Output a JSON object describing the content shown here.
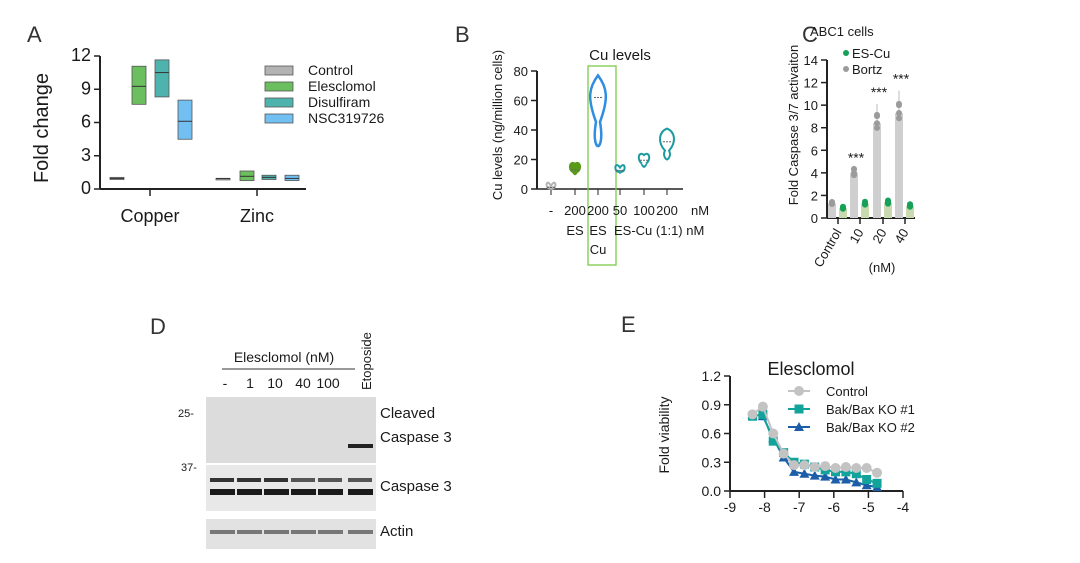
{
  "panels": {
    "a": "A",
    "b": "B",
    "c": "C",
    "d": "D",
    "e": "E"
  },
  "colors": {
    "control": "#b3b3b3",
    "elesclomol": "#6bbf5e",
    "disulfiram": "#4fb3ad",
    "nsc": "#72bff2",
    "es_green": "#5a9a1a",
    "escu_blue": "#2f8ee0",
    "teal": "#1b9aa0",
    "green_dot": "#16a05a",
    "grey_dot": "#9b9b9b",
    "ko1": "#12a39b",
    "ko2": "#1c5fa8",
    "highlight": "#7cc94a"
  },
  "chart_data": [
    {
      "id": "A",
      "type": "bar",
      "title": "",
      "xlabel": "",
      "ylabel": "Fold change",
      "ylim": [
        0,
        12.5
      ],
      "yticks": [
        0,
        3,
        6,
        9,
        12
      ],
      "categories": [
        "Copper",
        "Zinc"
      ],
      "series": [
        {
          "name": "Control",
          "min": [
            0.9,
            1.0
          ],
          "median": [
            1.0,
            1.0
          ],
          "max": [
            1.1,
            1.0
          ]
        },
        {
          "name": "Elesclomol",
          "min": [
            8.0,
            0.8
          ],
          "median": [
            9.7,
            1.2
          ],
          "max": [
            11.6,
            1.7
          ]
        },
        {
          "name": "Disulfiram",
          "min": [
            8.7,
            0.9
          ],
          "median": [
            11.0,
            1.1
          ],
          "max": [
            12.2,
            1.3
          ]
        },
        {
          "name": "NSC319726",
          "min": [
            4.7,
            0.8
          ],
          "median": [
            6.4,
            1.0
          ],
          "max": [
            8.4,
            1.3
          ]
        }
      ],
      "legend": "top-right"
    },
    {
      "id": "B",
      "type": "violin",
      "title": "Cu levels",
      "ylabel": "Cu levels (ng/million cells)",
      "ylim": [
        0,
        80
      ],
      "yticks": [
        0,
        20,
        40,
        60,
        80
      ],
      "dose_labels": [
        "-",
        "200",
        "200",
        "50",
        "100",
        "200",
        "nM"
      ],
      "group_labels": [
        "ES",
        "ES",
        "ES-Cu (1:1) nM"
      ],
      "group_label_extra": "Cu",
      "violins": [
        {
          "median": 1,
          "min": 0,
          "max": 2
        },
        {
          "median": 13,
          "min": 10,
          "max": 17
        },
        {
          "median": 62,
          "min": 29,
          "max": 77
        },
        {
          "median": 12.5,
          "min": 11,
          "max": 14.5
        },
        {
          "median": 19.5,
          "min": 15,
          "max": 23
        },
        {
          "median": 32,
          "min": 20,
          "max": 41
        }
      ]
    },
    {
      "id": "C",
      "type": "bar",
      "title": "ABC1 cells",
      "ylabel": "Fold Caspase 3/7 activaiton",
      "ylim": [
        0,
        14
      ],
      "yticks": [
        0,
        2,
        4,
        6,
        8,
        10,
        12,
        14
      ],
      "categories": [
        "Control",
        "10",
        "20",
        "40"
      ],
      "xunit": "(nM)",
      "series": [
        {
          "name": "ES-Cu",
          "values": [
            0.9,
            1.3,
            1.4,
            1.1
          ]
        },
        {
          "name": "Bortz",
          "values": [
            1.3,
            4.0,
            8.4,
            9.3
          ],
          "error_top": [
            1.7,
            4.3,
            10.1,
            11.3
          ]
        }
      ],
      "significance": [
        "",
        "***",
        "***",
        "***"
      ]
    },
    {
      "id": "E",
      "type": "line",
      "title": "Elesclomol",
      "xlabel": "",
      "ylabel": "Fold viability",
      "xlim": [
        -9,
        -4
      ],
      "ylim": [
        0,
        1.2
      ],
      "xticks": [
        -9,
        -8,
        -7,
        -6,
        -5,
        -4
      ],
      "yticks": [
        "0.0",
        "0.3",
        "0.6",
        "0.9",
        "1.2"
      ],
      "x": [
        -8.35,
        -8.05,
        -7.75,
        -7.45,
        -7.15,
        -6.85,
        -6.55,
        -6.25,
        -5.95,
        -5.65,
        -5.35,
        -5.05,
        -4.75
      ],
      "series": [
        {
          "name": "Control",
          "marker": "circle",
          "values": [
            0.8,
            0.88,
            0.6,
            0.39,
            0.27,
            0.27,
            0.25,
            0.26,
            0.24,
            0.25,
            0.24,
            0.24,
            0.19
          ]
        },
        {
          "name": "Bak/Bax KO #1",
          "marker": "square",
          "values": [
            0.78,
            0.8,
            0.52,
            0.4,
            0.3,
            0.28,
            0.25,
            0.22,
            0.2,
            0.2,
            0.18,
            0.12,
            0.08
          ]
        },
        {
          "name": "Bak/Bax KO #2",
          "marker": "triangle",
          "values": [
            0.8,
            0.78,
            0.55,
            0.35,
            0.2,
            0.18,
            0.16,
            0.15,
            0.12,
            0.12,
            0.09,
            0.06,
            0.04
          ]
        }
      ],
      "legend": "top-right"
    }
  ],
  "blot": {
    "header": "Elesclomol (nM)",
    "lanes": [
      "-",
      "1",
      "10",
      "40",
      "100"
    ],
    "etoposide": "Etoposide",
    "markers": [
      "25-",
      "37-"
    ],
    "labels": [
      "Cleaved",
      "Caspase 3",
      "Caspase 3",
      "Actin"
    ]
  }
}
